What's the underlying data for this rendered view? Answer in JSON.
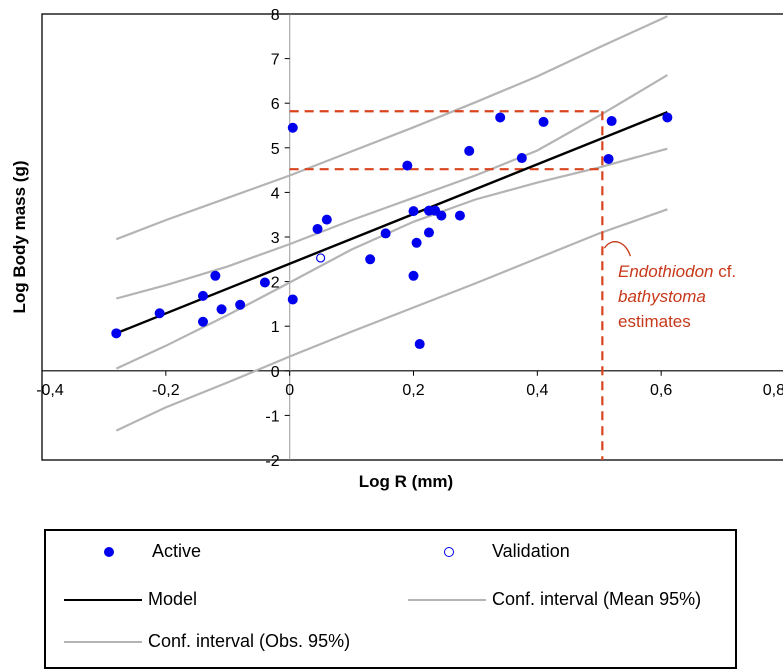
{
  "chart_data": {
    "type": "scatter",
    "xlabel": "Log R (mm)",
    "ylabel": "Log Body mass (g)",
    "xlim": [
      -0.4,
      0.8
    ],
    "ylim": [
      -2,
      8
    ],
    "x_ticks": [
      "-0,4",
      "-0,2",
      "0",
      "0,2",
      "0,4",
      "0,6",
      "0,8"
    ],
    "y_ticks": [
      "-2",
      "-1",
      "0",
      "1",
      "2",
      "3",
      "4",
      "5",
      "6",
      "7",
      "8"
    ],
    "series": [
      {
        "name": "Active",
        "kind": "points",
        "color": "#0000ee",
        "marker": "filled-circle",
        "points": [
          [
            -0.28,
            0.84
          ],
          [
            -0.21,
            1.29
          ],
          [
            -0.14,
            1.1
          ],
          [
            -0.14,
            1.68
          ],
          [
            -0.11,
            1.38
          ],
          [
            -0.12,
            2.13
          ],
          [
            -0.08,
            1.48
          ],
          [
            -0.04,
            1.98
          ],
          [
            0.005,
            1.6
          ],
          [
            0.005,
            5.45
          ],
          [
            0.045,
            3.18
          ],
          [
            0.06,
            3.39
          ],
          [
            0.13,
            2.5
          ],
          [
            0.155,
            3.08
          ],
          [
            0.19,
            4.6
          ],
          [
            0.2,
            3.58
          ],
          [
            0.2,
            2.13
          ],
          [
            0.205,
            2.87
          ],
          [
            0.21,
            0.6
          ],
          [
            0.225,
            3.59
          ],
          [
            0.225,
            3.1
          ],
          [
            0.235,
            3.59
          ],
          [
            0.245,
            3.48
          ],
          [
            0.275,
            3.48
          ],
          [
            0.29,
            4.93
          ],
          [
            0.34,
            5.68
          ],
          [
            0.375,
            4.77
          ],
          [
            0.41,
            5.58
          ],
          [
            0.515,
            4.75
          ],
          [
            0.52,
            5.6
          ],
          [
            0.61,
            5.68
          ]
        ]
      },
      {
        "name": "Validation",
        "kind": "points",
        "color": "#0000ee",
        "marker": "open-circle",
        "points": [
          [
            0.05,
            2.53
          ]
        ]
      },
      {
        "name": "Model",
        "kind": "line",
        "color": "#000000",
        "points": [
          [
            -0.28,
            0.84
          ],
          [
            0.61,
            5.8
          ]
        ]
      },
      {
        "name": "Conf. interval (Mean 95%)",
        "kind": "line",
        "color": "#b4b4b4",
        "points": [
          [
            -0.28,
            1.62
          ],
          [
            -0.2,
            1.92
          ],
          [
            -0.1,
            2.34
          ],
          [
            0.0,
            2.84
          ],
          [
            0.1,
            3.38
          ],
          [
            0.2,
            3.88
          ],
          [
            0.3,
            4.38
          ],
          [
            0.4,
            4.94
          ],
          [
            0.5,
            5.72
          ],
          [
            0.61,
            6.63
          ]
        ]
      },
      {
        "name": "Conf. interval (Mean 95%) lower",
        "kind": "line",
        "color": "#b4b4b4",
        "points": [
          [
            -0.28,
            0.05
          ],
          [
            -0.2,
            0.56
          ],
          [
            -0.1,
            1.25
          ],
          [
            0.0,
            1.98
          ],
          [
            0.1,
            2.72
          ],
          [
            0.2,
            3.34
          ],
          [
            0.3,
            3.84
          ],
          [
            0.4,
            4.22
          ],
          [
            0.5,
            4.56
          ],
          [
            0.61,
            4.98
          ]
        ]
      },
      {
        "name": "Conf. interval (Obs. 95%)",
        "kind": "line",
        "color": "#b4b4b4",
        "points": [
          [
            -0.28,
            2.95
          ],
          [
            -0.2,
            3.38
          ],
          [
            -0.1,
            3.88
          ],
          [
            0.0,
            4.38
          ],
          [
            0.1,
            4.92
          ],
          [
            0.2,
            5.46
          ],
          [
            0.3,
            6.02
          ],
          [
            0.4,
            6.6
          ],
          [
            0.5,
            7.25
          ],
          [
            0.61,
            7.95
          ]
        ]
      },
      {
        "name": "Conf. interval (Obs. 95%) lower",
        "kind": "line",
        "color": "#b4b4b4",
        "points": [
          [
            -0.28,
            -1.34
          ],
          [
            -0.2,
            -0.82
          ],
          [
            -0.1,
            -0.26
          ],
          [
            0.0,
            0.32
          ],
          [
            0.1,
            0.88
          ],
          [
            0.2,
            1.42
          ],
          [
            0.3,
            1.96
          ],
          [
            0.4,
            2.52
          ],
          [
            0.5,
            3.08
          ],
          [
            0.61,
            3.62
          ]
        ]
      }
    ],
    "estimate_box": {
      "color": "#d9441f",
      "x_range": [
        0.0,
        0.505
      ],
      "y_range": [
        4.52,
        5.82
      ]
    },
    "annotation": {
      "line1_italic": "Endothiodon",
      "line1_regular": " cf.",
      "line2_italic": "bathystoma",
      "line3": "estimates",
      "arrow_target": [
        0.505,
        2.75
      ]
    },
    "grid": false,
    "legend_position": "bottom"
  },
  "legend": {
    "active": "Active",
    "validation": "Validation",
    "model": "Model",
    "ci_mean": "Conf. interval (Mean 95%)",
    "ci_obs": "Conf. interval (Obs. 95%)"
  }
}
